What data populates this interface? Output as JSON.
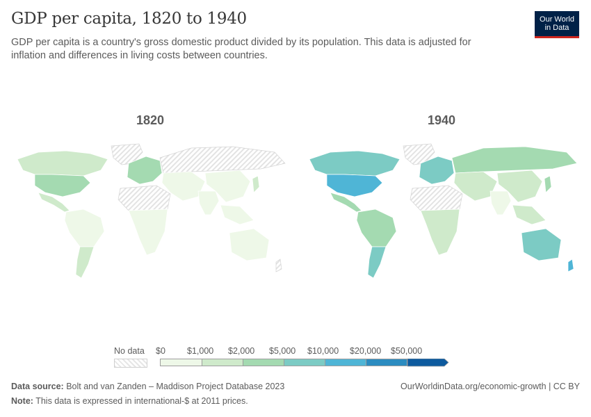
{
  "header": {
    "title": "GDP per capita, 1820 to 1940",
    "subtitle": "GDP per capita is a country's gross domestic product divided by its population. This data is adjusted for inflation and differences in living costs between countries.",
    "logo_line1": "Our World",
    "logo_line2": "in Data"
  },
  "maps": [
    {
      "year": "1820"
    },
    {
      "year": "1940"
    }
  ],
  "legend": {
    "no_data_label": "No data",
    "bins": [
      {
        "label": "$0",
        "color": "#eef8e8"
      },
      {
        "label": "$1,000",
        "color": "#cfeacb"
      },
      {
        "label": "$2,000",
        "color": "#a4dab1"
      },
      {
        "label": "$5,000",
        "color": "#7ccbc4"
      },
      {
        "label": "$10,000",
        "color": "#4fb5d6"
      },
      {
        "label": "$20,000",
        "color": "#2c8cc0"
      },
      {
        "label": "$50,000",
        "color": "#0d5a9e"
      }
    ]
  },
  "colors": {
    "no_data_stroke": "#d4d4d4",
    "country_stroke": "#ffffff"
  },
  "footer": {
    "source_label": "Data source:",
    "source_text": "Bolt and van Zanden – Maddison Project Database 2023",
    "note_label": "Note:",
    "note_text": "This data is expressed in international-$ at 2011 prices.",
    "right_text": "OurWorldinData.org/economic-growth | CC BY"
  }
}
